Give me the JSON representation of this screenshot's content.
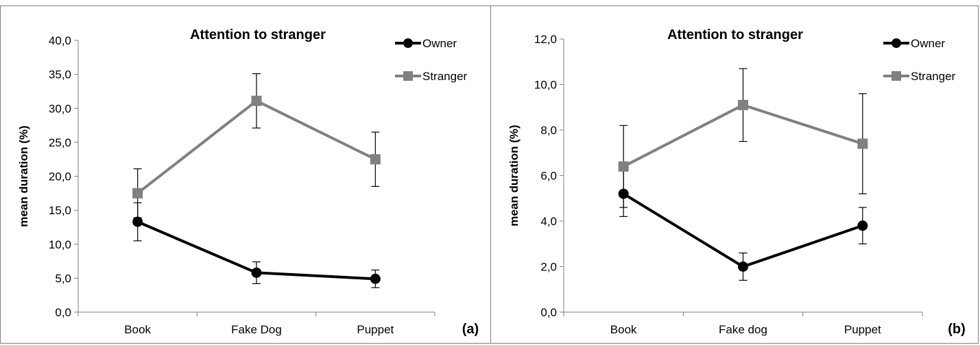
{
  "chart_data": [
    {
      "type": "line",
      "title": "Attention to  stranger",
      "ylabel": "mean duration (%)",
      "xlabel": "",
      "panel_label": "(a)",
      "categories": [
        "Book",
        "Fake Dog",
        "Puppet"
      ],
      "ylim": [
        0,
        40
      ],
      "yticks": [
        "0,0",
        "5,0",
        "10,0",
        "15,0",
        "20,0",
        "25,0",
        "30,0",
        "35,0",
        "40,0"
      ],
      "grid": false,
      "legend_position": "top-right",
      "series": [
        {
          "name": "Owner",
          "color": "#000000",
          "marker": "circle",
          "values": [
            13.3,
            5.8,
            4.9
          ],
          "error": [
            2.8,
            1.6,
            1.3
          ]
        },
        {
          "name": "Stranger",
          "color": "#808080",
          "marker": "square",
          "values": [
            17.5,
            31.1,
            22.5
          ],
          "error": [
            3.6,
            4.0,
            4.0
          ]
        }
      ]
    },
    {
      "type": "line",
      "title": "Attention to stranger",
      "ylabel": "mean duration (%)",
      "xlabel": "",
      "panel_label": "(b)",
      "categories": [
        "Book",
        "Fake dog",
        "Puppet"
      ],
      "ylim": [
        0,
        12
      ],
      "yticks": [
        "0,0",
        "2,0",
        "4,0",
        "6,0",
        "8,0",
        "10,0",
        "12,0"
      ],
      "grid": false,
      "legend_position": "top-right",
      "series": [
        {
          "name": "Owner",
          "color": "#000000",
          "marker": "circle",
          "values": [
            5.2,
            2.0,
            3.8
          ],
          "error": [
            1.0,
            0.6,
            0.8
          ]
        },
        {
          "name": "Stranger",
          "color": "#808080",
          "marker": "square",
          "values": [
            6.4,
            9.1,
            7.4
          ],
          "error": [
            1.8,
            1.6,
            2.2
          ]
        }
      ]
    }
  ]
}
